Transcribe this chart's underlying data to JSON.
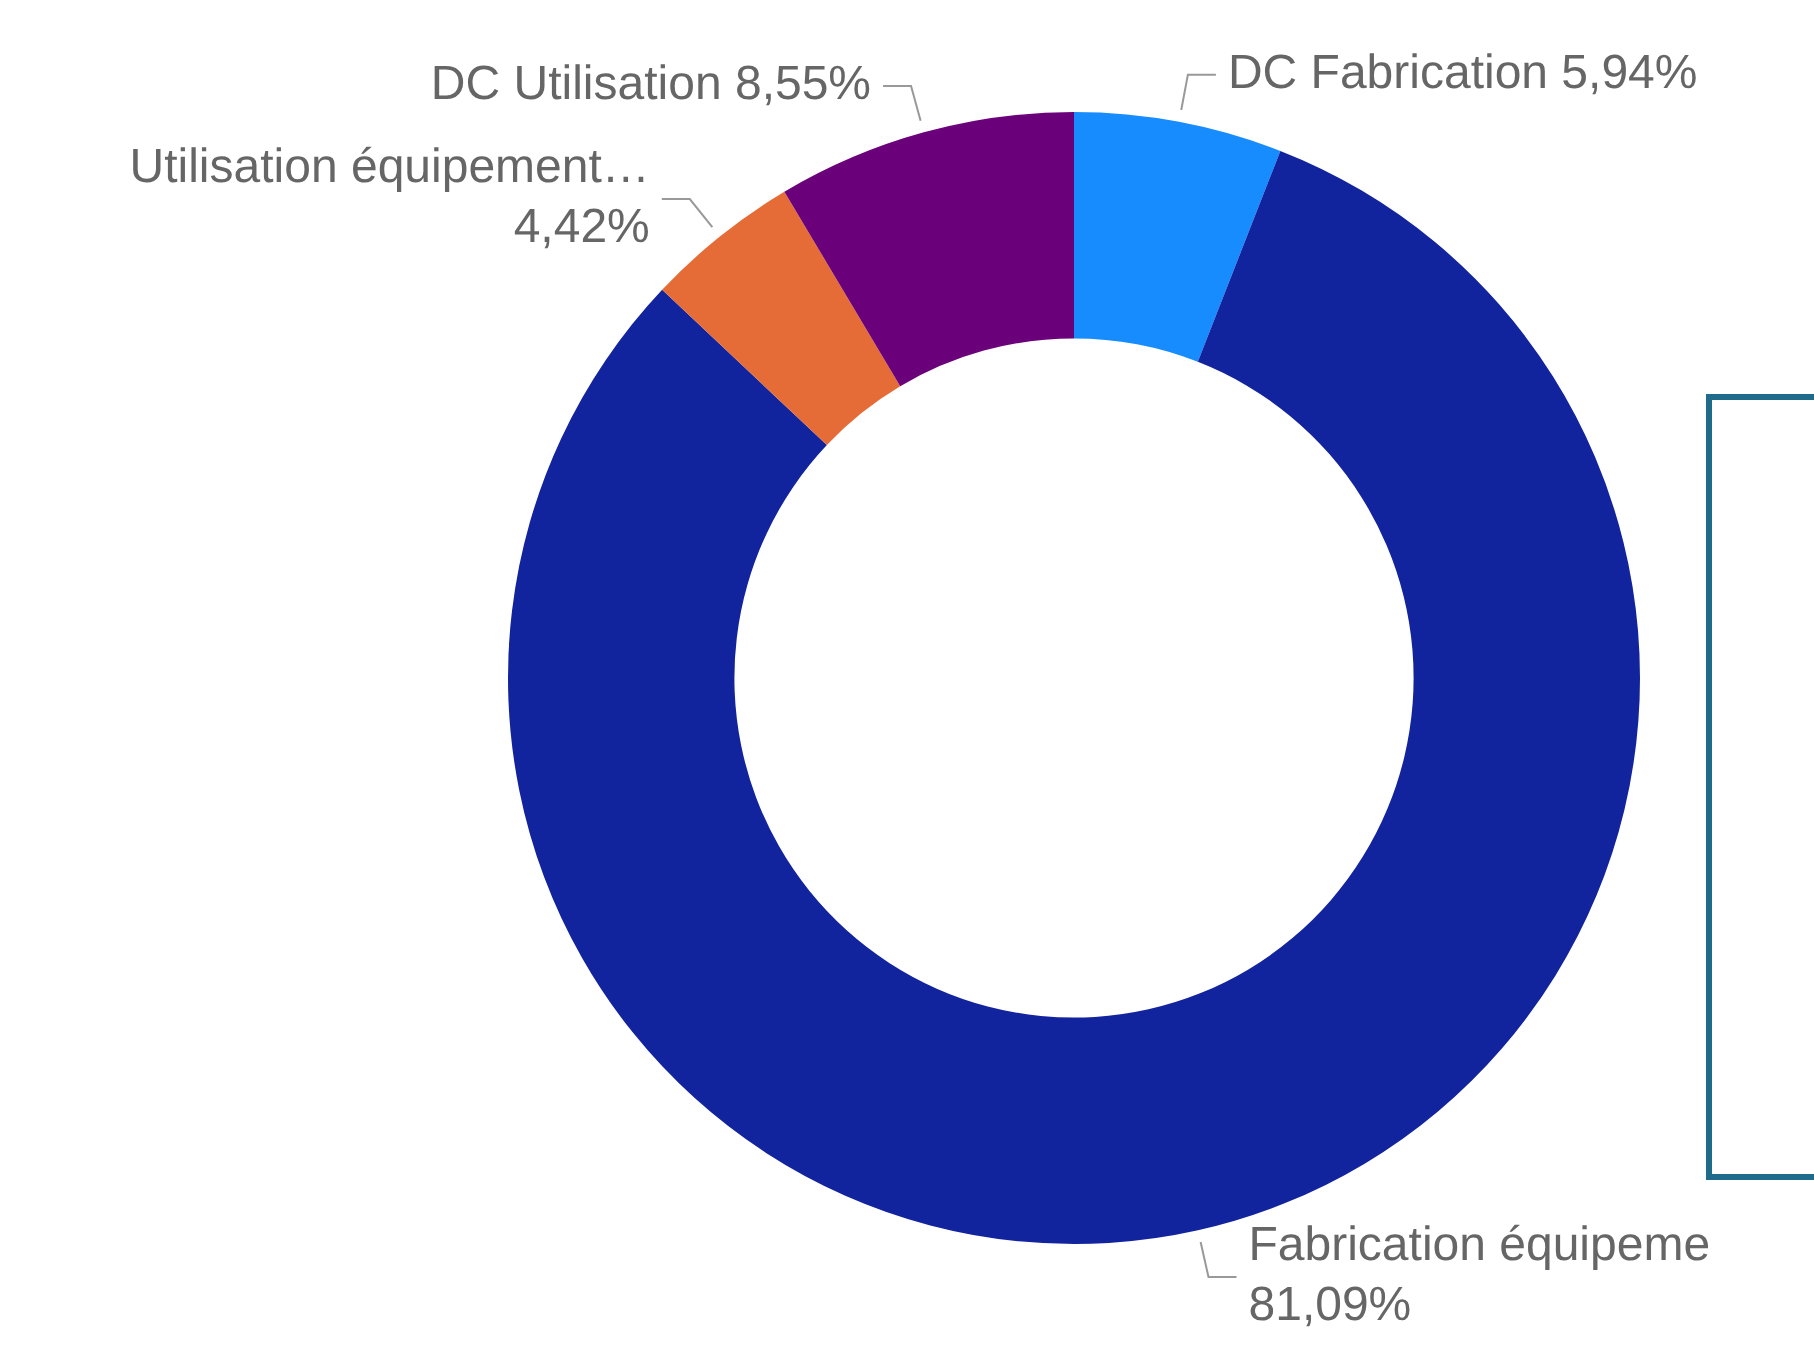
{
  "chart_data": {
    "type": "donut",
    "categories": [
      "DC Fabrication",
      "Fabrication équipeme",
      "Utilisation équipement…",
      "DC Utilisation"
    ],
    "values": [
      5.94,
      81.09,
      4.42,
      8.55
    ],
    "value_labels": [
      "5,94%",
      "81,09%",
      "4,42%",
      "8,55%"
    ],
    "colors": [
      "#178cff",
      "#12239e",
      "#e66c37",
      "#6b007b"
    ],
    "legend": false
  }
}
